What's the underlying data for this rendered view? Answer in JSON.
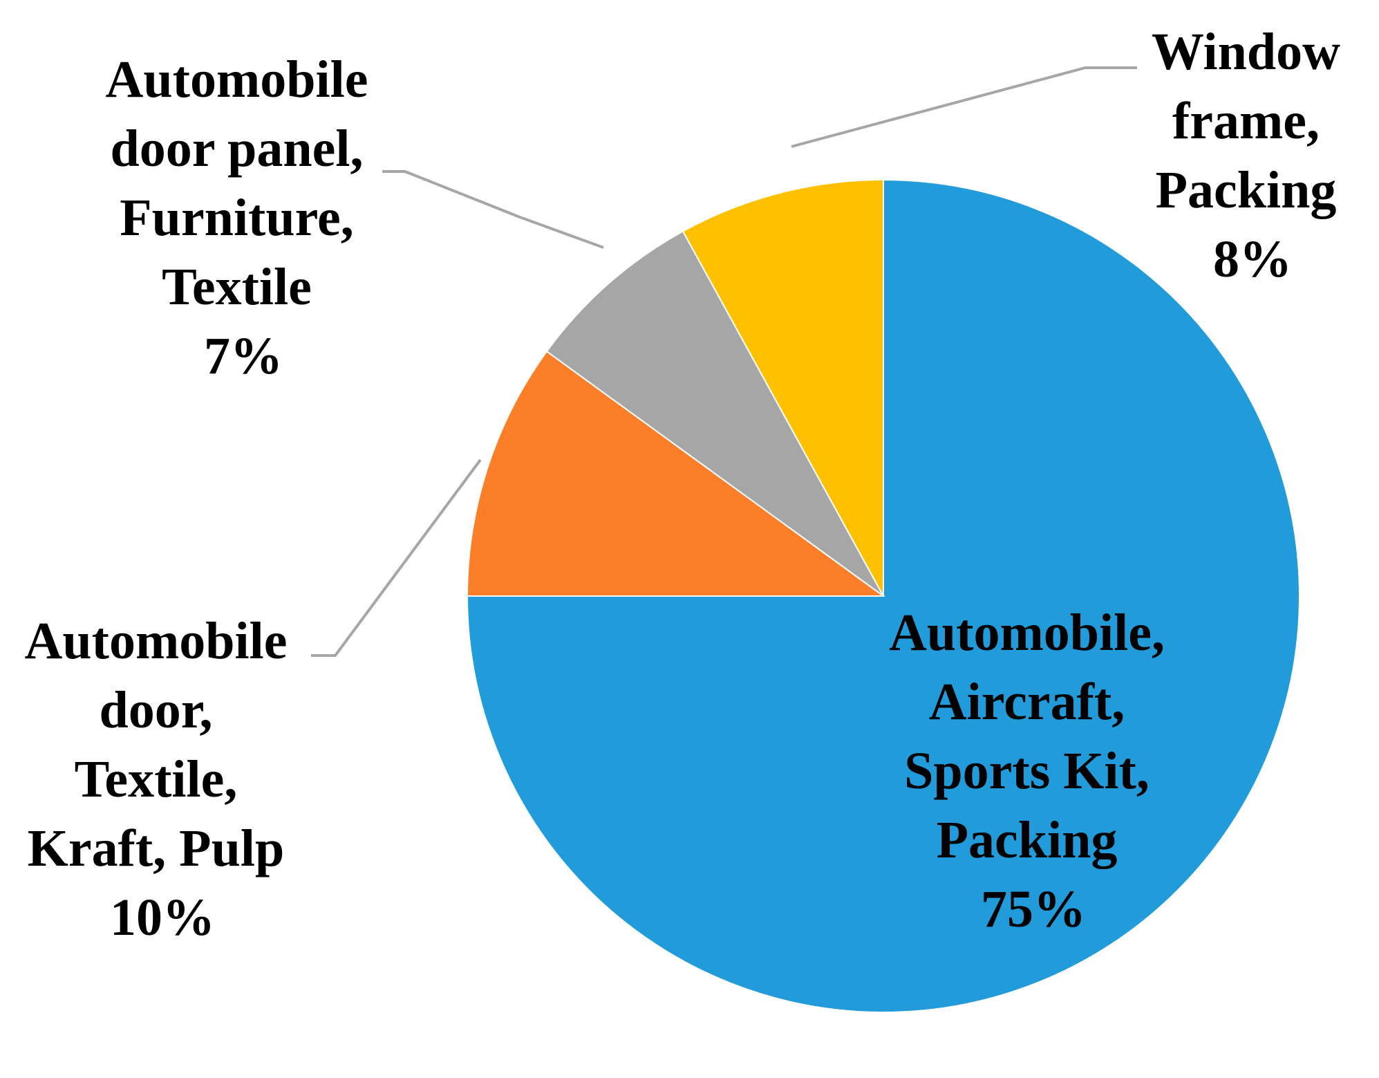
{
  "chart_data": {
    "type": "pie",
    "title": "",
    "start": "12 o'clock, clockwise",
    "legend": "none (data labels with leader lines)",
    "slices": [
      {
        "label_lines": [
          "Automobile,",
          "Aircraft,",
          "Sports Kit,",
          "Packing"
        ],
        "value": 75,
        "value_label": "75%",
        "color": "#219bd9"
      },
      {
        "label_lines": [
          "Automobile",
          "door,",
          "Textile,",
          "Kraft, Pulp"
        ],
        "value": 10,
        "value_label": "10%",
        "color": "#fd7e28"
      },
      {
        "label_lines": [
          "Automobile",
          "door panel,",
          "Furniture,",
          "Textile"
        ],
        "value": 7,
        "value_label": "7%",
        "color": "#a6a6a6"
      },
      {
        "label_lines": [
          "Window",
          "frame,",
          "Packing"
        ],
        "value": 8,
        "value_label": "8%",
        "color": "#ffc000"
      }
    ]
  }
}
